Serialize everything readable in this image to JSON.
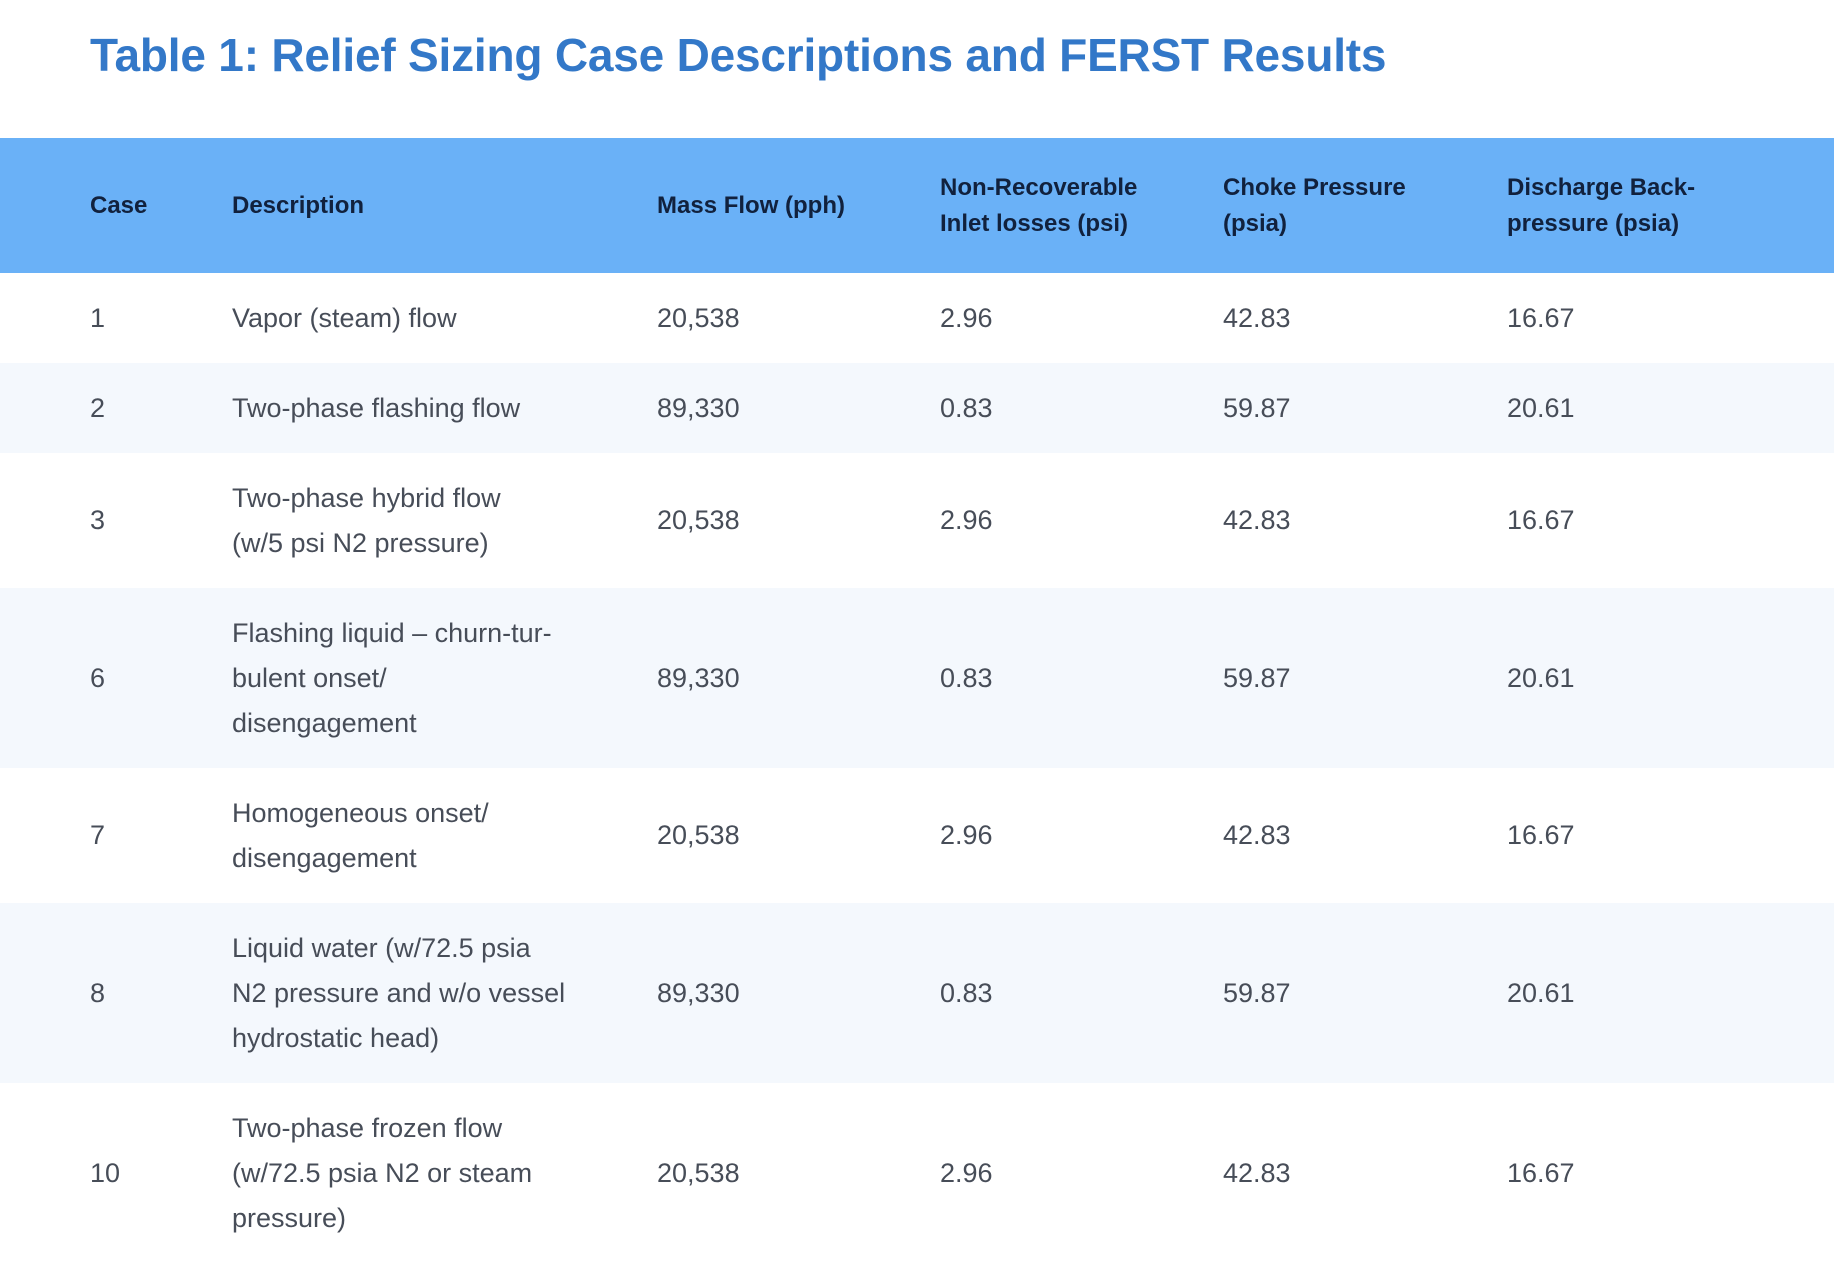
{
  "title": "Table 1: Relief Sizing Case Descriptions and FERST Results",
  "columns": {
    "case": "Case",
    "description": "Description",
    "mass_flow": "Mass Flow (pph)",
    "inlet_losses": [
      "Non-Recoverable",
      "Inlet losses (psi)"
    ],
    "choke_pressure": [
      "Choke Pressure",
      "(psia)"
    ],
    "back_pressure": [
      "Discharge Back-",
      "pressure (psia)"
    ]
  },
  "rows": [
    {
      "case": "1",
      "description": [
        "Vapor (steam) flow"
      ],
      "mass_flow": "20,538",
      "inlet_losses": "2.96",
      "choke_pressure": "42.83",
      "back_pressure": "16.67"
    },
    {
      "case": "2",
      "description": [
        "Two-phase flashing flow"
      ],
      "mass_flow": "89,330",
      "inlet_losses": "0.83",
      "choke_pressure": "59.87",
      "back_pressure": "20.61"
    },
    {
      "case": "3",
      "description": [
        "Two-phase hybrid flow",
        "(w/5 psi N2 pressure)"
      ],
      "mass_flow": "20,538",
      "inlet_losses": "2.96",
      "choke_pressure": "42.83",
      "back_pressure": "16.67"
    },
    {
      "case": "6",
      "description": [
        "Flashing liquid – churn-tur-",
        "bulent onset/",
        "disengagement"
      ],
      "mass_flow": "89,330",
      "inlet_losses": "0.83",
      "choke_pressure": "59.87",
      "back_pressure": "20.61"
    },
    {
      "case": "7",
      "description": [
        "Homogeneous onset/",
        "disengagement"
      ],
      "mass_flow": "20,538",
      "inlet_losses": "2.96",
      "choke_pressure": "42.83",
      "back_pressure": "16.67"
    },
    {
      "case": "8",
      "description": [
        "Liquid water (w/72.5 psia",
        "N2 pressure and w/o vessel",
        "hydrostatic head)"
      ],
      "mass_flow": "89,330",
      "inlet_losses": "0.83",
      "choke_pressure": "59.87",
      "back_pressure": "20.61"
    },
    {
      "case": "10",
      "description": [
        "Two-phase frozen flow",
        "(w/72.5 psia N2 or steam",
        "pressure)"
      ],
      "mass_flow": "20,538",
      "inlet_losses": "2.96",
      "choke_pressure": "42.83",
      "back_pressure": "16.67"
    }
  ],
  "colors": {
    "title": "#3378c8",
    "header_bg": "#6ab1f7",
    "header_text": "#11213d",
    "row_alt_bg": "#f4f8fd"
  }
}
